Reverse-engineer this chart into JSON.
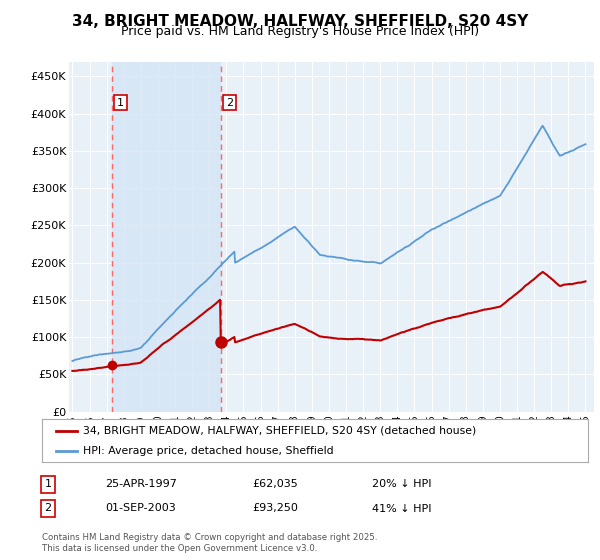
{
  "title": "34, BRIGHT MEADOW, HALFWAY, SHEFFIELD, S20 4SY",
  "subtitle": "Price paid vs. HM Land Registry's House Price Index (HPI)",
  "title_fontsize": 11,
  "subtitle_fontsize": 9,
  "background_color": "#ffffff",
  "plot_bg_color": "#e8f0f8",
  "highlight_color": "#cfdcee",
  "ylabel_values": [
    "£0",
    "£50K",
    "£100K",
    "£150K",
    "£200K",
    "£250K",
    "£300K",
    "£350K",
    "£400K",
    "£450K"
  ],
  "yticks": [
    0,
    50000,
    100000,
    150000,
    200000,
    250000,
    300000,
    350000,
    400000,
    450000
  ],
  "ylim": [
    0,
    470000
  ],
  "xlim_start": 1994.8,
  "xlim_end": 2025.5,
  "marker1_x": 1997.3,
  "marker1_y": 62035,
  "marker1_label": "1",
  "marker1_date": "25-APR-1997",
  "marker1_price": "£62,035",
  "marker1_hpi": "20% ↓ HPI",
  "marker2_x": 2003.67,
  "marker2_y": 93250,
  "marker2_label": "2",
  "marker2_date": "01-SEP-2003",
  "marker2_price": "£93,250",
  "marker2_hpi": "41% ↓ HPI",
  "hpi_color": "#5b9bd5",
  "price_color": "#c00000",
  "vline_color": "#ff6666",
  "legend_label_price": "34, BRIGHT MEADOW, HALFWAY, SHEFFIELD, S20 4SY (detached house)",
  "legend_label_hpi": "HPI: Average price, detached house, Sheffield",
  "footnote": "Contains HM Land Registry data © Crown copyright and database right 2025.\nThis data is licensed under the Open Government Licence v3.0.",
  "xtick_years": [
    1995,
    1996,
    1997,
    1998,
    1999,
    2000,
    2001,
    2002,
    2003,
    2004,
    2005,
    2006,
    2007,
    2008,
    2009,
    2010,
    2011,
    2012,
    2013,
    2014,
    2015,
    2016,
    2017,
    2018,
    2019,
    2020,
    2021,
    2022,
    2023,
    2024,
    2025
  ]
}
